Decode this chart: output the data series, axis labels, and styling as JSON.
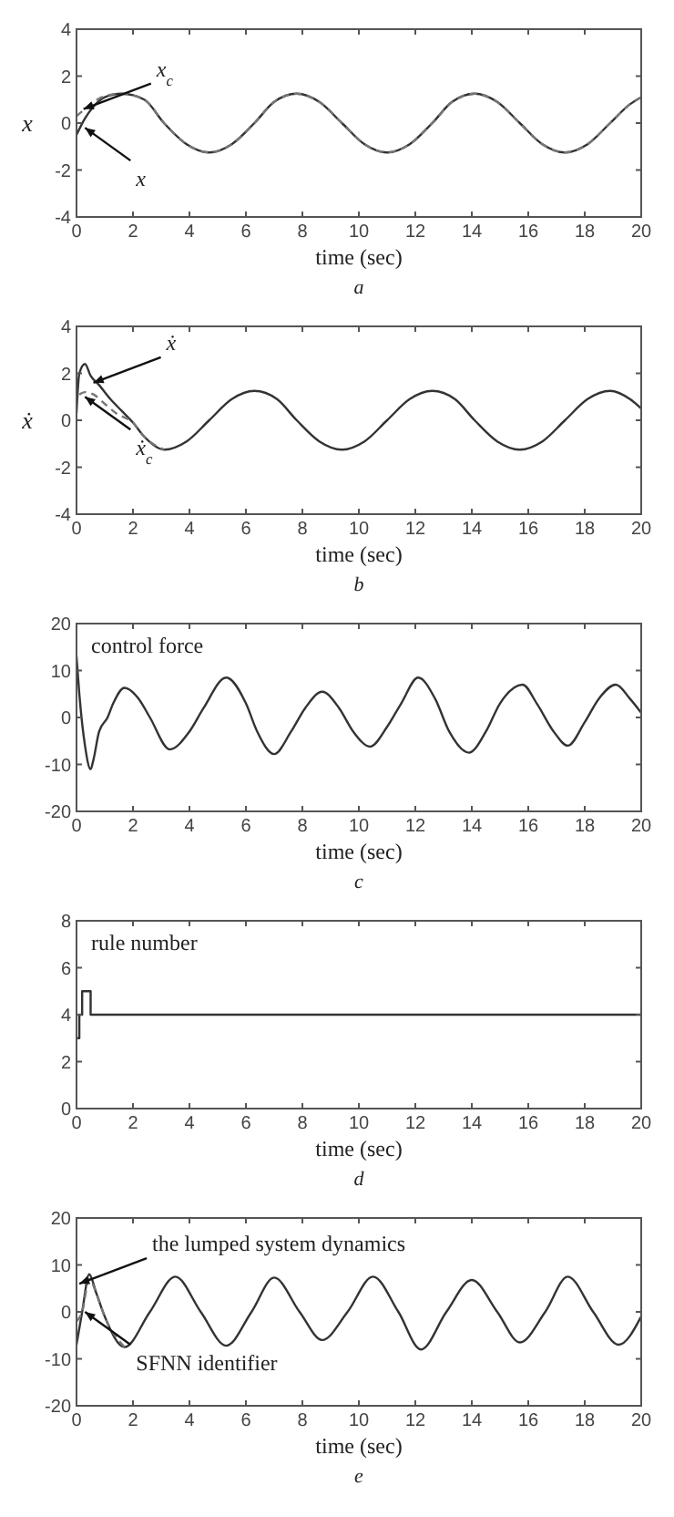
{
  "chart_data": [
    {
      "type": "line",
      "ylabel": "x",
      "xlabel": "time (sec)",
      "subtitle": "a",
      "xlim": [
        0,
        20
      ],
      "ylim": [
        -4,
        4
      ],
      "xticks": [
        0,
        2,
        4,
        6,
        8,
        10,
        12,
        14,
        16,
        18,
        20
      ],
      "yticks": [
        -4,
        -2,
        0,
        2,
        4
      ],
      "grid": false,
      "series": [
        {
          "color": "#333333",
          "line_style": "solid",
          "x": [
            0,
            0.3,
            0.6,
            1,
            1.6,
            2.4,
            3.1,
            3.9,
            4.7,
            5.5,
            6.3,
            7.0,
            7.8,
            8.6,
            9.4,
            10.2,
            11.0,
            11.8,
            12.6,
            13.3,
            14.1,
            14.9,
            15.7,
            16.5,
            17.3,
            18.1,
            18.9,
            19.6,
            20
          ],
          "values": [
            -0.5,
            0.2,
            0.7,
            1.1,
            1.25,
            1.0,
            0.0,
            -0.9,
            -1.25,
            -0.9,
            0,
            0.9,
            1.25,
            0.9,
            0,
            -0.9,
            -1.25,
            -0.9,
            0,
            0.9,
            1.25,
            0.9,
            0,
            -0.9,
            -1.25,
            -0.9,
            0,
            0.8,
            1.1
          ]
        },
        {
          "color": "#777777",
          "line_style": "dashed",
          "x": [
            0,
            0.3,
            0.6,
            1,
            1.6,
            2.4,
            3.1,
            3.9,
            4.7,
            5.5,
            6.3,
            7.0,
            7.8,
            8.6,
            9.4,
            10.2,
            11.0,
            11.8,
            12.6,
            13.3,
            14.1,
            14.9,
            15.7,
            16.5,
            17.3,
            18.1,
            18.9,
            19.6,
            20
          ],
          "values": [
            0.3,
            0.6,
            0.9,
            1.15,
            1.25,
            1.0,
            0.0,
            -0.9,
            -1.25,
            -0.9,
            0,
            0.9,
            1.25,
            0.9,
            0,
            -0.9,
            -1.25,
            -0.9,
            0,
            0.9,
            1.25,
            0.9,
            0,
            -0.9,
            -1.25,
            -0.9,
            0,
            0.8,
            1.1
          ]
        }
      ],
      "annotations": [
        {
          "text": "x$_{c}$",
          "x": 0.25,
          "y": 0.6
        },
        {
          "text": "x",
          "x": 0.3,
          "y": -0.2
        }
      ]
    },
    {
      "type": "line",
      "ylabel": "ẋ",
      "xlabel": "time (sec)",
      "subtitle": "b",
      "xlim": [
        0,
        20
      ],
      "ylim": [
        -4,
        4
      ],
      "xticks": [
        0,
        2,
        4,
        6,
        8,
        10,
        12,
        14,
        16,
        18,
        20
      ],
      "yticks": [
        -4,
        -2,
        0,
        2,
        4
      ],
      "grid": false,
      "series": [
        {
          "color": "#333333",
          "line_style": "solid",
          "x": [
            0,
            0.1,
            0.3,
            0.5,
            0.8,
            1.2,
            1.6,
            2.0,
            2.4,
            3.1,
            3.9,
            4.7,
            5.5,
            6.3,
            7.1,
            7.8,
            8.6,
            9.4,
            10.2,
            11.0,
            11.8,
            12.6,
            13.4,
            14.1,
            14.9,
            15.7,
            16.5,
            17.3,
            18.1,
            18.9,
            19.6,
            20
          ],
          "values": [
            0.3,
            2.0,
            2.4,
            1.9,
            1.5,
            0.9,
            0.4,
            -0.1,
            -0.7,
            -1.25,
            -0.9,
            0,
            0.9,
            1.25,
            0.9,
            0,
            -0.9,
            -1.25,
            -0.9,
            0,
            0.9,
            1.25,
            0.9,
            0,
            -0.9,
            -1.25,
            -0.9,
            0,
            0.9,
            1.25,
            0.9,
            0.5
          ]
        },
        {
          "color": "#777777",
          "line_style": "dashed",
          "x": [
            0.1,
            0.3,
            0.6,
            1.0,
            1.4,
            2.0,
            2.4,
            3.1
          ],
          "values": [
            1.1,
            1.2,
            1.1,
            0.7,
            0.3,
            -0.1,
            -0.7,
            -1.25
          ]
        }
      ],
      "annotations": [
        {
          "text": "ẋ",
          "x": 0.6,
          "y": 1.6
        },
        {
          "text": "ẋ$_{c}$",
          "x": 0.3,
          "y": 1.0
        }
      ]
    },
    {
      "type": "line",
      "xlabel": "time (sec)",
      "subtitle": "c",
      "xlim": [
        0,
        20
      ],
      "ylim": [
        -20,
        20
      ],
      "xticks": [
        0,
        2,
        4,
        6,
        8,
        10,
        12,
        14,
        16,
        18,
        20
      ],
      "yticks": [
        -20,
        -10,
        0,
        10,
        20
      ],
      "grid": false,
      "series": [
        {
          "color": "#333333",
          "line_style": "solid",
          "x": [
            0,
            0.1,
            0.3,
            0.5,
            0.6,
            0.8,
            1.1,
            1.3,
            1.7,
            2.2,
            2.6,
            3.3,
            4.0,
            4.5,
            5.3,
            6.0,
            6.4,
            7.0,
            7.6,
            8.1,
            8.7,
            9.3,
            9.8,
            10.4,
            11.0,
            11.5,
            12.1,
            12.7,
            13.2,
            13.9,
            14.5,
            15.0,
            15.8,
            16.3,
            16.9,
            17.4,
            18.0,
            18.5,
            19.1,
            19.6,
            20
          ],
          "values": [
            13,
            5,
            -6,
            -11,
            -9,
            -3,
            0,
            3,
            6.3,
            4,
            0,
            -6.8,
            -3,
            2,
            8.5,
            3,
            -3,
            -7.8,
            -3,
            2,
            5.5,
            2,
            -3,
            -6.2,
            -2,
            3,
            8.5,
            4,
            -3,
            -7.5,
            -3,
            3,
            7,
            3,
            -3,
            -6,
            -1,
            4,
            7,
            4,
            1
          ]
        }
      ],
      "annotations": [
        "control force"
      ]
    },
    {
      "type": "step",
      "xlabel": "time (sec)",
      "subtitle": "d",
      "xlim": [
        0,
        20
      ],
      "ylim": [
        0,
        8
      ],
      "xticks": [
        0,
        2,
        4,
        6,
        8,
        10,
        12,
        14,
        16,
        18,
        20
      ],
      "yticks": [
        0,
        2,
        4,
        6,
        8
      ],
      "grid": false,
      "series": [
        {
          "color": "#333333",
          "line_style": "solid",
          "x": [
            0,
            0.1,
            0.2,
            0.5,
            20
          ],
          "values": [
            3,
            4,
            5,
            4,
            4
          ]
        }
      ],
      "annotations": [
        "rule number"
      ]
    },
    {
      "type": "line",
      "xlabel": "time (sec)",
      "subtitle": "e",
      "xlim": [
        0,
        20
      ],
      "ylim": [
        -20,
        20
      ],
      "xticks": [
        0,
        2,
        4,
        6,
        8,
        10,
        12,
        14,
        16,
        18,
        20
      ],
      "yticks": [
        -20,
        -10,
        0,
        10,
        20
      ],
      "grid": false,
      "series": [
        {
          "color": "#333333",
          "line_style": "solid",
          "x": [
            0,
            0.2,
            0.45,
            0.7,
            1.0,
            1.7,
            2.6,
            3.5,
            4.4,
            5.3,
            6.2,
            7.0,
            7.9,
            8.7,
            9.6,
            10.5,
            11.4,
            12.2,
            13.1,
            14.0,
            14.9,
            15.7,
            16.6,
            17.4,
            18.3,
            19.2,
            20
          ],
          "values": [
            -7,
            0,
            8,
            4,
            -1,
            -7.5,
            0,
            7.5,
            0,
            -7.2,
            0,
            7.3,
            0,
            -6,
            0,
            7.5,
            0,
            -8,
            0,
            6.8,
            0,
            -6.5,
            0,
            7.5,
            0,
            -7,
            -1
          ]
        },
        {
          "color": "#777777",
          "line_style": "dashed",
          "x": [
            0,
            0.2,
            0.45,
            0.7,
            1.0,
            1.7
          ],
          "values": [
            -2,
            0,
            7,
            4,
            -1,
            -7.5
          ]
        }
      ],
      "annotations": [
        {
          "text": "the lumped system dynamics",
          "x": 0.1,
          "y": 6
        },
        {
          "text": "SFNN identifier",
          "x": 0.3,
          "y": 0
        }
      ]
    }
  ]
}
